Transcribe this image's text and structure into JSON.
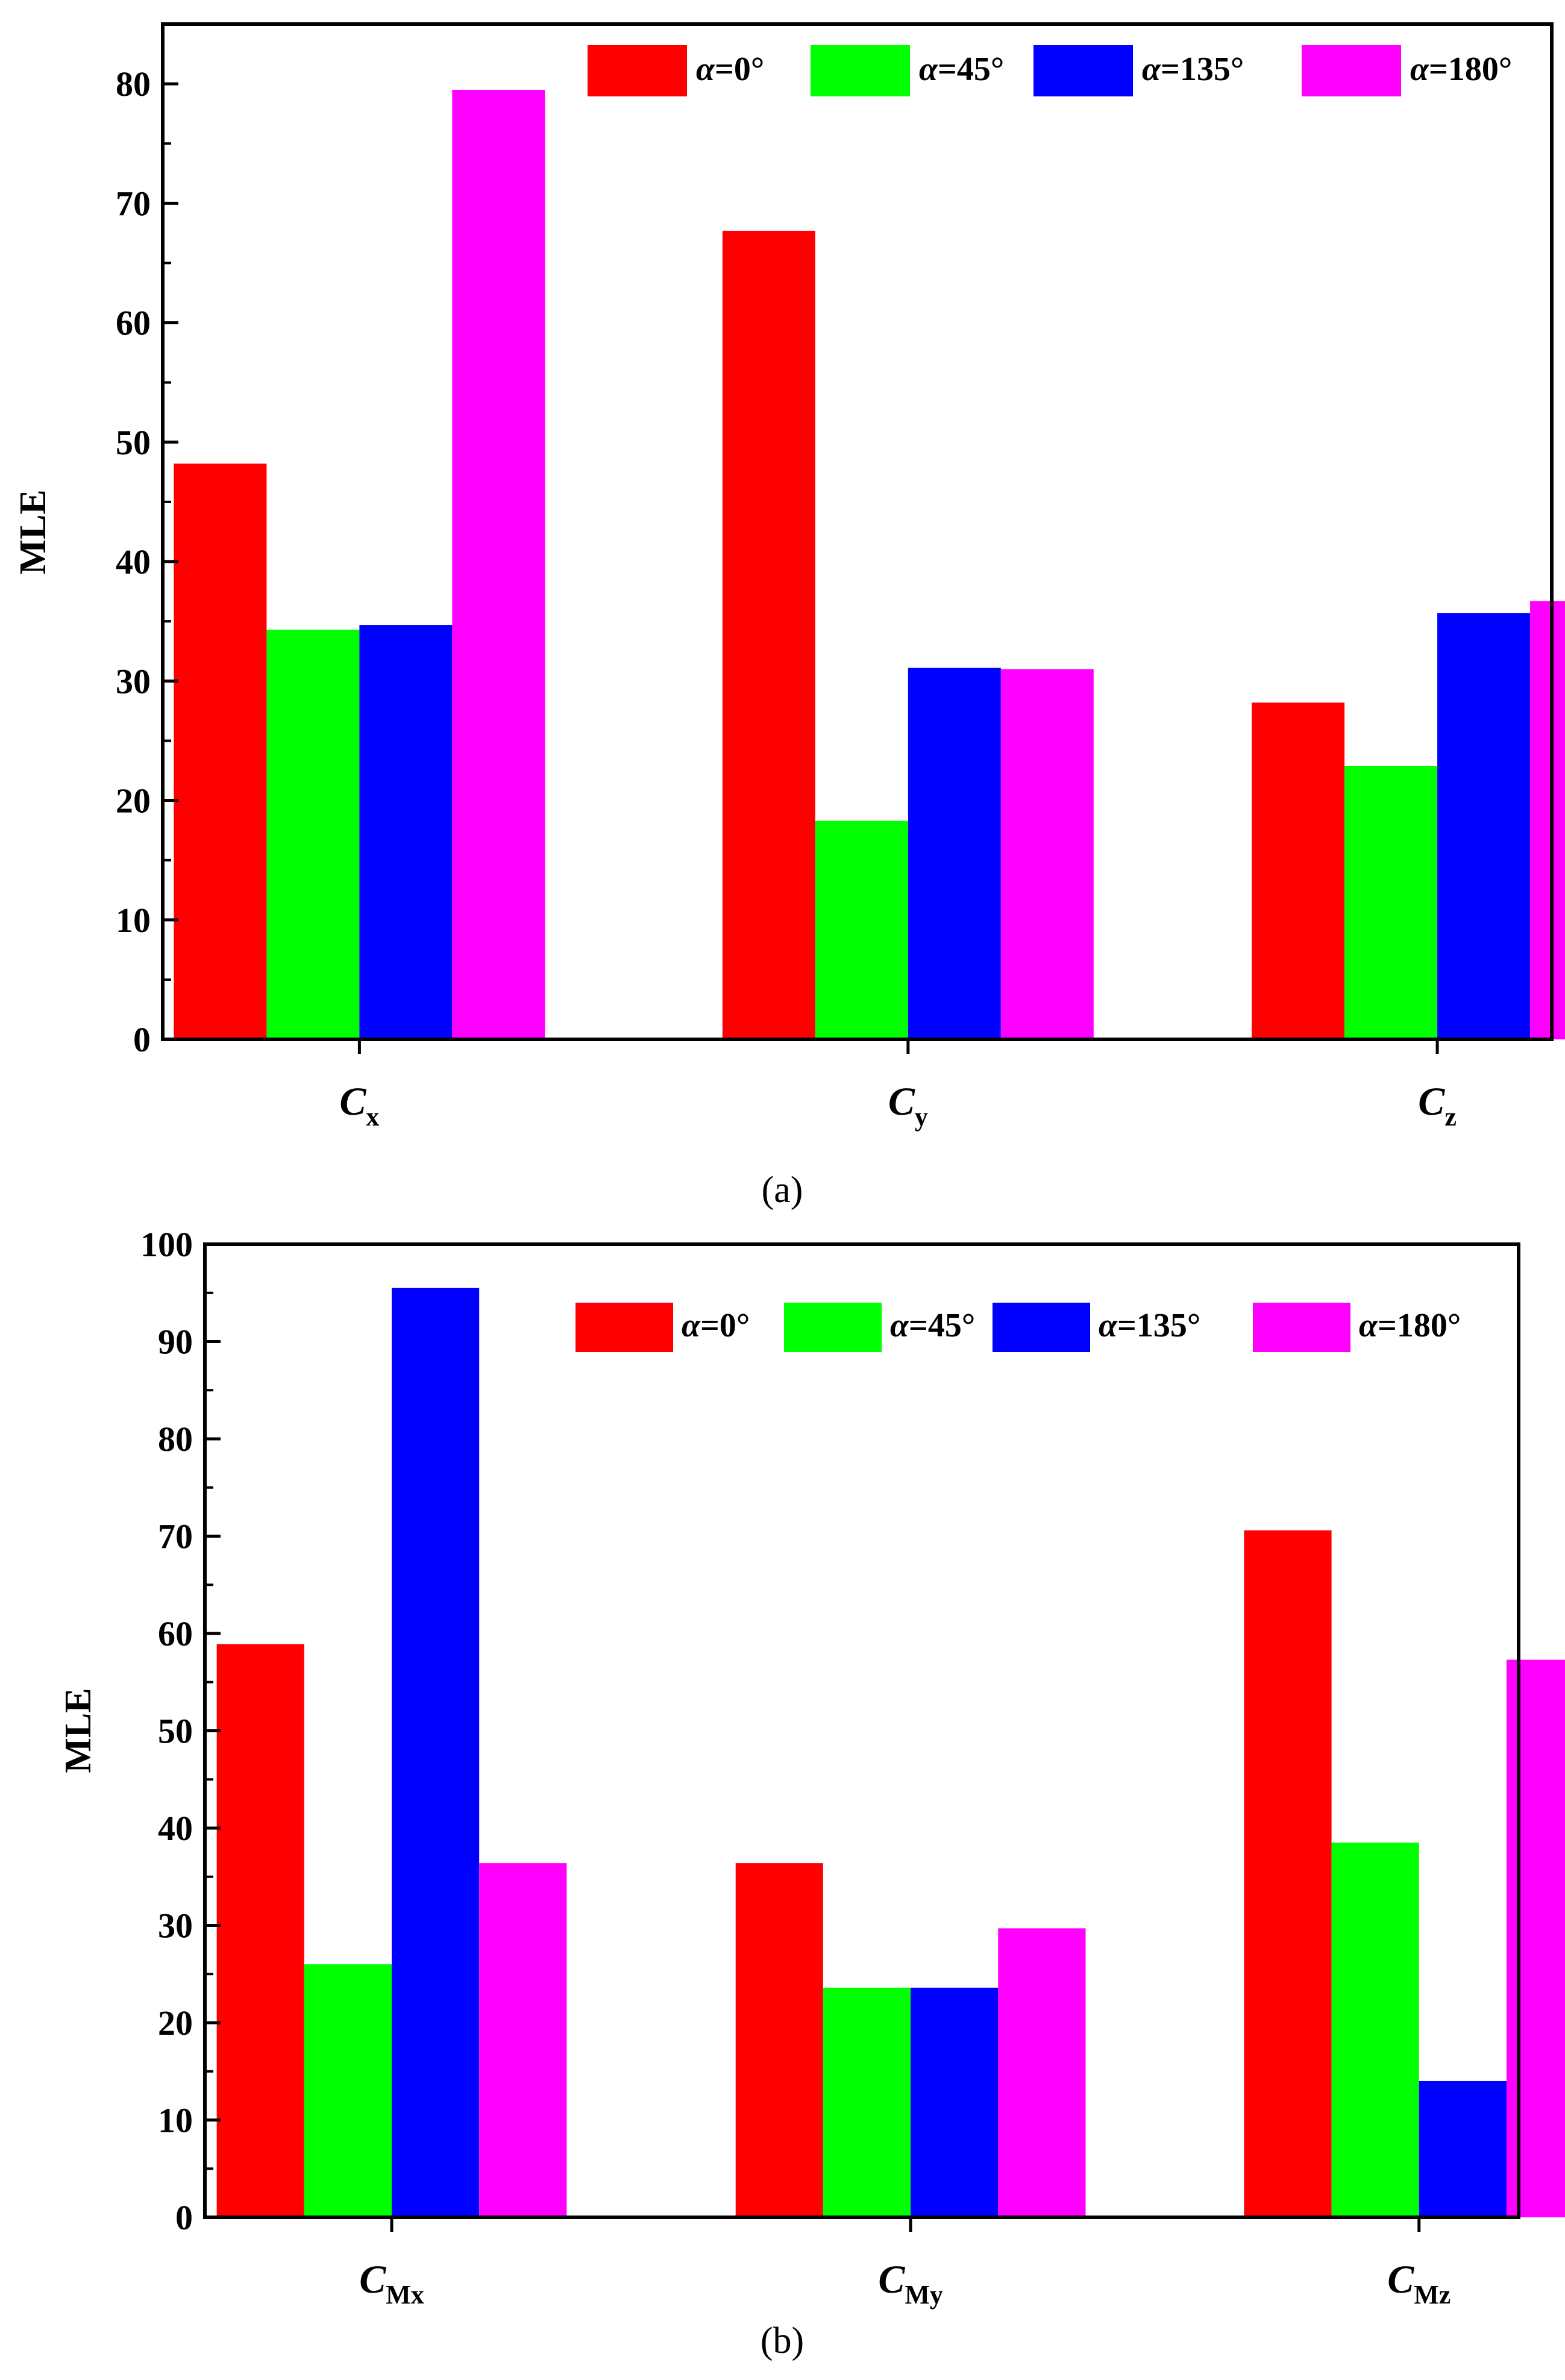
{
  "colors": {
    "alpha0": "#ff0000",
    "alpha45": "#00ff00",
    "alpha135": "#0000ff",
    "alpha180": "#ff00ff",
    "axis": "#000000"
  },
  "chart_data": [
    {
      "type": "bar",
      "panel_label": "(a)",
      "ylabel": "MLE",
      "xlabel": "",
      "ylim": [
        0,
        85
      ],
      "yticks": [
        0,
        10,
        20,
        30,
        40,
        50,
        60,
        70,
        80
      ],
      "categories": [
        {
          "main": "C",
          "sub": "x"
        },
        {
          "main": "C",
          "sub": "y"
        },
        {
          "main": "C",
          "sub": "z"
        }
      ],
      "series": [
        {
          "alpha": "α",
          "name": "=0°",
          "color": "#ff0000",
          "values": [
            48.2,
            67.7,
            28.2
          ]
        },
        {
          "alpha": "α",
          "name": "=45°",
          "color": "#00ff00",
          "values": [
            34.3,
            18.3,
            22.9
          ]
        },
        {
          "alpha": "α",
          "name": "=135°",
          "color": "#0000ff",
          "values": [
            34.7,
            31.1,
            35.7
          ]
        },
        {
          "alpha": "α",
          "name": "=180°",
          "color": "#ff00ff",
          "values": [
            79.5,
            31.0,
            36.7
          ]
        }
      ],
      "legend_position": "top-right"
    },
    {
      "type": "bar",
      "panel_label": "(b)",
      "ylabel": "MLE",
      "xlabel": "",
      "ylim": [
        0,
        100
      ],
      "yticks": [
        0,
        10,
        20,
        30,
        40,
        50,
        60,
        70,
        80,
        90,
        100
      ],
      "categories": [
        {
          "main": "C",
          "sub": "Mx"
        },
        {
          "main": "C",
          "sub": "My"
        },
        {
          "main": "C",
          "sub": "Mz"
        }
      ],
      "series": [
        {
          "alpha": "α",
          "name": "=0°",
          "color": "#ff0000",
          "values": [
            58.9,
            36.4,
            70.6
          ]
        },
        {
          "alpha": "α",
          "name": "=45°",
          "color": "#00ff00",
          "values": [
            26.0,
            23.6,
            38.5
          ]
        },
        {
          "alpha": "α",
          "name": "=135°",
          "color": "#0000ff",
          "values": [
            95.5,
            23.6,
            14.0
          ]
        },
        {
          "alpha": "α",
          "name": "=180°",
          "color": "#ff00ff",
          "values": [
            36.4,
            29.7,
            57.3
          ]
        }
      ],
      "legend_position": "top-right"
    }
  ]
}
